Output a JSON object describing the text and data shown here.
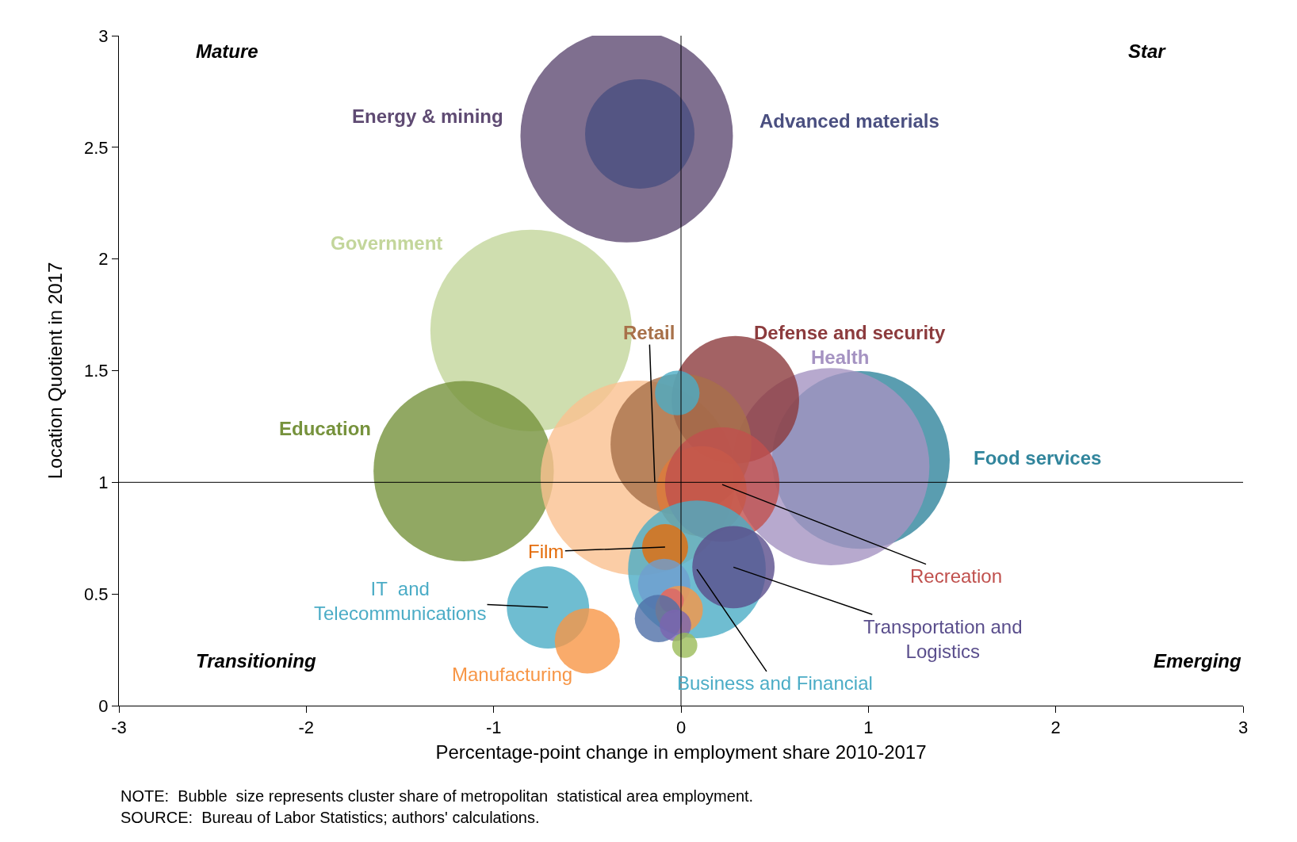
{
  "chart_data": {
    "type": "bubble",
    "xlabel": "Percentage-point change in employment share 2010-2017",
    "ylabel": "Location Quotient in 2017",
    "xlim": [
      -3,
      3
    ],
    "xticks": [
      -3,
      -2,
      -1,
      0,
      1,
      2,
      3
    ],
    "ylim": [
      0,
      3
    ],
    "yticks": [
      0,
      0.5,
      1,
      1.5,
      2,
      2.5,
      3
    ],
    "grid": false,
    "ref_lines": [
      {
        "axis": "x",
        "value": 0
      },
      {
        "axis": "y",
        "value": 1
      }
    ],
    "annotations": [
      "Mature",
      "Star",
      "Transitioning",
      "Emerging",
      "NOTE:  Bubble  size represents cluster share of metropolitan  statistical area employment.",
      "SOURCE:  Bureau of Labor Statistics; authors' calculations."
    ],
    "series": [
      {
        "name": "Government",
        "color": "#c3d69b",
        "x": [
          -0.8
        ],
        "values": [
          1.68
        ],
        "sizes": [
          0.9
        ]
      },
      {
        "name": "Education",
        "color": "#76923c",
        "x": [
          -1.16
        ],
        "values": [
          1.05
        ],
        "sizes": [
          0.72
        ]
      },
      {
        "color": "#fac090",
        "x": [
          -0.23
        ],
        "values": [
          1.02
        ],
        "sizes": [
          0.84
        ]
      },
      {
        "name": "Energy & mining",
        "color": "#5f4b73",
        "x": [
          -0.29
        ],
        "values": [
          2.55
        ],
        "sizes": [
          1.0
        ]
      },
      {
        "name": "Advanced materials",
        "color": "#4a4f80",
        "x": [
          -0.22
        ],
        "values": [
          2.56
        ],
        "sizes": [
          0.265
        ]
      },
      {
        "name": "Food services",
        "color": "#31859c",
        "x": [
          0.96
        ],
        "values": [
          1.1
        ],
        "sizes": [
          0.7
        ]
      },
      {
        "name": "Health",
        "color": "#a593c2",
        "x": [
          0.8
        ],
        "values": [
          1.07
        ],
        "sizes": [
          0.86
        ]
      },
      {
        "name": "Defense and security",
        "color": "#8c3b3d",
        "x": [
          0.29
        ],
        "values": [
          1.37
        ],
        "sizes": [
          0.36
        ]
      },
      {
        "name": "Retail",
        "color": "#a8714a",
        "x": [
          0.0
        ],
        "values": [
          1.17
        ],
        "sizes": [
          0.44
        ]
      },
      {
        "color": "#4bacc6",
        "x": [
          -0.02
        ],
        "values": [
          1.4
        ],
        "sizes": [
          0.044
        ]
      },
      {
        "color": "#e07a3a",
        "x": [
          0.11
        ],
        "values": [
          0.96
        ],
        "sizes": [
          0.18
        ]
      },
      {
        "name": "Recreation",
        "color": "#c0504d",
        "x": [
          0.22
        ],
        "values": [
          0.99
        ],
        "sizes": [
          0.29
        ]
      },
      {
        "name": "Business and Financial",
        "color": "#4bacc6",
        "x": [
          0.085
        ],
        "values": [
          0.61
        ],
        "sizes": [
          0.42
        ]
      },
      {
        "name": "Transportation and\nLogistics",
        "color": "#5a4e8c",
        "x": [
          0.28
        ],
        "values": [
          0.62
        ],
        "sizes": [
          0.15
        ]
      },
      {
        "name": "Film",
        "color": "#e46c0a",
        "x": [
          -0.085
        ],
        "values": [
          0.71
        ],
        "sizes": [
          0.047
        ]
      },
      {
        "color": "#6f9ed0",
        "x": [
          -0.09
        ],
        "values": [
          0.54
        ],
        "sizes": [
          0.061
        ]
      },
      {
        "color": "#f79646",
        "x": [
          -0.01
        ],
        "values": [
          0.43
        ],
        "sizes": [
          0.05
        ]
      },
      {
        "color": "#d9646a",
        "x": [
          -0.05
        ],
        "values": [
          0.47
        ],
        "sizes": [
          0.013
        ]
      },
      {
        "color": "#4f6fa8",
        "x": [
          -0.12
        ],
        "values": [
          0.39
        ],
        "sizes": [
          0.05
        ]
      },
      {
        "color": "#7b64b0",
        "x": [
          -0.03
        ],
        "values": [
          0.36
        ],
        "sizes": [
          0.022
        ]
      },
      {
        "color": "#9bbb59",
        "x": [
          0.02
        ],
        "values": [
          0.27
        ],
        "sizes": [
          0.014
        ]
      },
      {
        "name": "IT  and\nTelecommunications",
        "color": "#4bacc6",
        "x": [
          -0.71
        ],
        "values": [
          0.44
        ],
        "sizes": [
          0.15
        ]
      },
      {
        "name": "Manufacturing",
        "color": "#f79646",
        "x": [
          -0.5
        ],
        "values": [
          0.29
        ],
        "sizes": [
          0.094
        ]
      }
    ]
  }
}
